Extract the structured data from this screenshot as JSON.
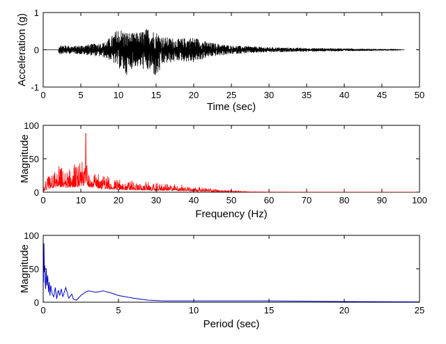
{
  "chart_data": [
    {
      "type": "line",
      "xlabel": "Time (sec)",
      "ylabel": "Acceleration (g)",
      "xlim": [
        0,
        50
      ],
      "ylim": [
        -1,
        1
      ],
      "xticks": [
        0,
        5,
        10,
        15,
        20,
        25,
        30,
        35,
        40,
        45,
        50
      ],
      "yticks": [
        -1,
        0,
        1
      ],
      "grid": false,
      "series": [
        {
          "color": "#000000",
          "envelope_t": [
            0,
            2,
            2.1,
            4,
            6,
            8,
            9,
            10,
            10.5,
            11,
            12,
            13,
            14,
            14.5,
            15,
            16,
            18,
            20,
            22,
            25,
            30,
            35,
            40,
            45,
            48
          ],
          "envelope_up": [
            0,
            0,
            0.15,
            0.1,
            0.15,
            0.2,
            0.35,
            0.6,
            0.55,
            0.5,
            0.45,
            0.5,
            0.6,
            0.55,
            0.5,
            0.35,
            0.3,
            0.35,
            0.2,
            0.12,
            0.07,
            0.05,
            0.04,
            0.02,
            0.0
          ],
          "envelope_down": [
            0,
            0,
            -0.12,
            -0.1,
            -0.15,
            -0.2,
            -0.3,
            -0.5,
            -0.55,
            -0.7,
            -0.45,
            -0.5,
            -0.6,
            -0.6,
            -0.8,
            -0.4,
            -0.3,
            -0.35,
            -0.2,
            -0.12,
            -0.07,
            -0.05,
            -0.04,
            -0.02,
            0.0
          ]
        }
      ]
    },
    {
      "type": "line",
      "xlabel": "Frequency (Hz)",
      "ylabel": "Magnitude",
      "xlim": [
        0,
        100
      ],
      "ylim": [
        0,
        100
      ],
      "xticks": [
        0,
        10,
        20,
        30,
        40,
        50,
        60,
        70,
        80,
        90,
        100
      ],
      "yticks": [
        0,
        50,
        100
      ],
      "grid": false,
      "series": [
        {
          "color": "#ff0000",
          "envelope_x": [
            0,
            1,
            2,
            3,
            4,
            5,
            6,
            7,
            8,
            9,
            10,
            11,
            11.3,
            12,
            13,
            14,
            15,
            17,
            20,
            25,
            30,
            35,
            40,
            45,
            50,
            55,
            60,
            70,
            80,
            100
          ],
          "envelope_peak": [
            5,
            25,
            35,
            40,
            45,
            42,
            40,
            42,
            45,
            48,
            50,
            52,
            88,
            55,
            42,
            38,
            32,
            30,
            22,
            18,
            15,
            14,
            10,
            6,
            3,
            1,
            0.5,
            0.3,
            0.2,
            0.1
          ]
        }
      ]
    },
    {
      "type": "line",
      "xlabel": "Period (sec)",
      "ylabel": "Magnitude",
      "xlim": [
        0,
        25
      ],
      "ylim": [
        0,
        100
      ],
      "xticks": [
        0,
        5,
        10,
        15,
        20,
        25
      ],
      "yticks": [
        0,
        50,
        100
      ],
      "grid": false,
      "series": [
        {
          "color": "#0000cc",
          "x": [
            0.02,
            0.05,
            0.08,
            0.1,
            0.13,
            0.16,
            0.2,
            0.25,
            0.3,
            0.35,
            0.4,
            0.45,
            0.5,
            0.6,
            0.7,
            0.8,
            0.9,
            1.0,
            1.1,
            1.2,
            1.3,
            1.5,
            1.7,
            1.9,
            2.0,
            2.2,
            2.5,
            2.8,
            3.0,
            3.5,
            4.0,
            4.5,
            5.0,
            6.0,
            7.0,
            8.0,
            10.0,
            12.0,
            15.0,
            18.0,
            20.0,
            25.0
          ],
          "y": [
            30,
            88,
            45,
            55,
            30,
            20,
            50,
            25,
            40,
            15,
            30,
            10,
            25,
            12,
            8,
            22,
            5,
            18,
            10,
            20,
            8,
            22,
            6,
            12,
            5,
            3,
            10,
            15,
            17,
            15,
            17,
            14,
            10,
            6,
            3,
            2,
            2,
            2,
            2,
            1.5,
            1,
            0.5
          ]
        }
      ]
    }
  ]
}
